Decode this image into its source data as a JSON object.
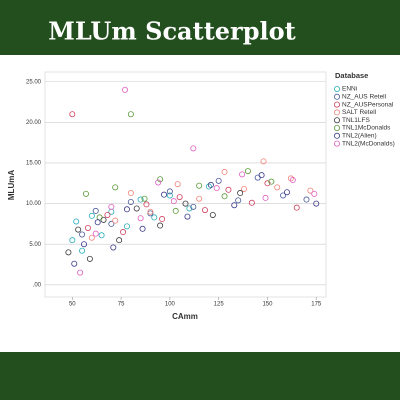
{
  "chart_data": {
    "type": "scatter",
    "title": "MLUm Scatterplot",
    "x_label": "CAmm",
    "y_label": "MLUmA",
    "legend_title": "Database",
    "legend_position": "right",
    "grid": true,
    "xlim": [
      36,
      180
    ],
    "ylim": [
      -1.5,
      26.2
    ],
    "xticks": [
      50,
      75,
      100,
      125,
      150,
      175
    ],
    "yticks": [
      {
        "value": 0,
        "label": ".00"
      },
      {
        "value": 5,
        "label": "5.00"
      },
      {
        "value": 10,
        "label": "10.00"
      },
      {
        "value": 15,
        "label": "15.00"
      },
      {
        "value": 20,
        "label": "20.00"
      },
      {
        "value": 25,
        "label": "25.00"
      }
    ],
    "series": [
      {
        "name": "ENNi",
        "color": "#2aaeb8",
        "x": [
          50,
          52,
          55,
          60,
          65,
          70,
          78,
          85,
          92,
          100,
          110,
          120
        ],
        "values": [
          5.5,
          7.8,
          4.2,
          8.5,
          6.1,
          9.0,
          7.2,
          10.5,
          8.3,
          11.0,
          9.4,
          12.1
        ]
      },
      {
        "name": "NZ_AUS Retell",
        "color": "#4a5a9a",
        "x": [
          55,
          62,
          70,
          80,
          90,
          100,
          112,
          125,
          135,
          145,
          158,
          170
        ],
        "values": [
          6.2,
          9.1,
          7.5,
          10.2,
          8.8,
          11.5,
          9.6,
          12.8,
          10.4,
          13.2,
          11.0,
          10.5
        ]
      },
      {
        "name": "NZ_AUSPersonal",
        "color": "#d0405e",
        "x": [
          50,
          58,
          68,
          76,
          88,
          96,
          105,
          118,
          130,
          142,
          150,
          165
        ],
        "values": [
          21.0,
          7.0,
          8.6,
          6.5,
          9.9,
          8.1,
          10.8,
          9.2,
          11.7,
          10.1,
          12.5,
          9.5
        ]
      },
      {
        "name": "SALT Retell",
        "color": "#f0857a",
        "x": [
          60,
          72,
          80,
          90,
          104,
          115,
          128,
          138,
          148,
          155,
          162,
          172
        ],
        "values": [
          5.8,
          7.9,
          11.3,
          9.0,
          12.4,
          10.6,
          13.9,
          11.8,
          15.2,
          12.0,
          13.1,
          11.6
        ]
      },
      {
        "name": "TNL1LFS",
        "color": "#3a3a3a",
        "x": [
          48,
          53,
          59,
          66,
          74,
          83,
          95,
          108,
          122,
          136
        ],
        "values": [
          4.0,
          6.8,
          3.2,
          8.0,
          5.5,
          9.4,
          7.3,
          10.0,
          8.6,
          11.3
        ]
      },
      {
        "name": "TNL1McDonalds",
        "color": "#5a9a3a",
        "x": [
          57,
          64,
          72,
          80,
          87,
          95,
          103,
          115,
          128,
          140,
          152
        ],
        "values": [
          11.2,
          8.3,
          12.0,
          21.0,
          10.6,
          13.0,
          9.1,
          12.2,
          10.9,
          14.0,
          12.7
        ]
      },
      {
        "name": "TNL2(Alien)",
        "color": "#3a3a8a",
        "x": [
          51,
          56,
          63,
          71,
          78,
          86,
          97,
          109,
          121,
          133,
          147,
          160,
          175
        ],
        "values": [
          2.6,
          5.0,
          7.7,
          4.6,
          9.3,
          6.9,
          11.1,
          8.4,
          12.3,
          9.8,
          13.5,
          11.4,
          10.0
        ]
      },
      {
        "name": "TNL2(McDonalds)",
        "color": "#e060c0",
        "x": [
          54,
          62,
          70,
          77,
          85,
          94,
          102,
          112,
          124,
          137,
          149,
          163,
          174
        ],
        "values": [
          1.5,
          6.3,
          9.6,
          24.0,
          8.2,
          12.6,
          10.3,
          16.8,
          11.9,
          13.6,
          10.7,
          12.9,
          11.2
        ]
      }
    ]
  }
}
